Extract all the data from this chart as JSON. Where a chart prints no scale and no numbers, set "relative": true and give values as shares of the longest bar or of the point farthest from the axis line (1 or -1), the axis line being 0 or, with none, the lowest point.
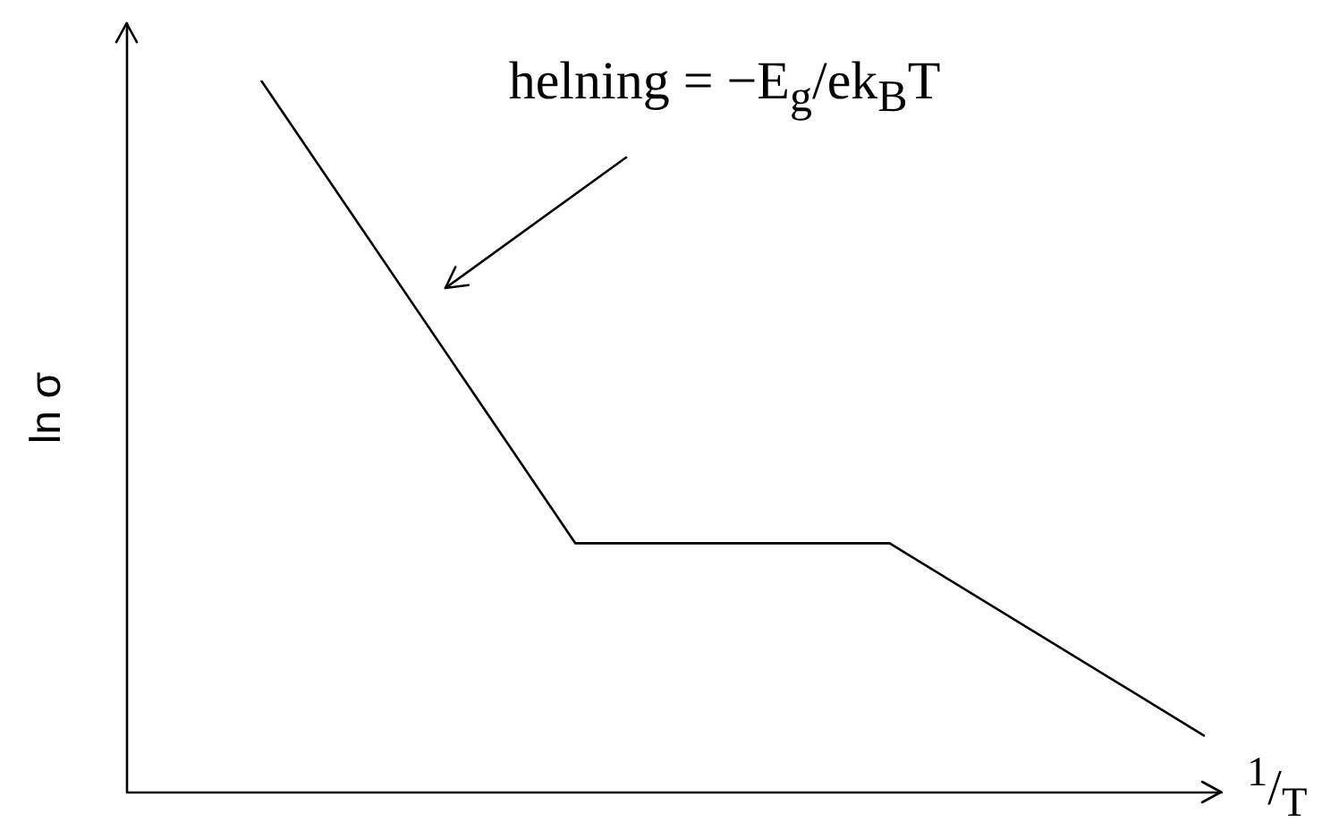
{
  "chart_data": {
    "type": "line",
    "relative": true,
    "xlabel": "$^{1}$/$_{T}$",
    "ylabel": "ln σ",
    "categories": [
      null,
      null,
      null,
      null
    ],
    "values": [
      1,
      0.35,
      0.35,
      0.08
    ],
    "color": "#000000",
    "marker": "none",
    "annotations": [
      "helning = −E$_{g}$/ek$_{B}$T"
    ]
  }
}
